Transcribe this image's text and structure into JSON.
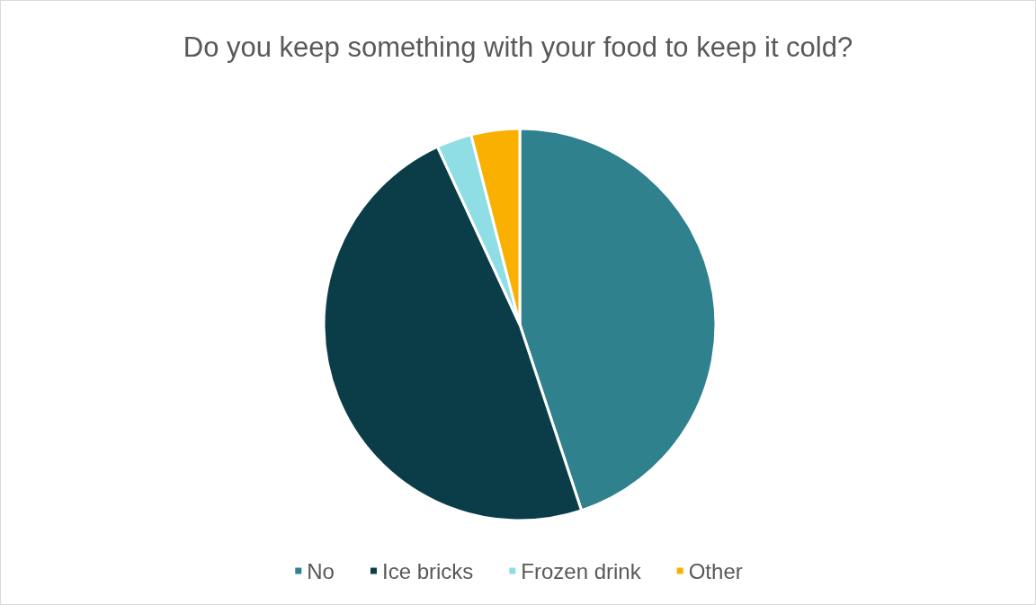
{
  "chart_data": {
    "type": "pie",
    "title": "Do you keep something with your food to keep it cold?",
    "categories": [
      "No",
      "Ice bricks",
      "Frozen drink",
      "Other"
    ],
    "values": [
      44.9,
      48.2,
      2.9,
      4.0
    ],
    "colors": [
      "#2e818d",
      "#0b3d48",
      "#8fdde5",
      "#f9b000"
    ],
    "legend": "bottom"
  }
}
